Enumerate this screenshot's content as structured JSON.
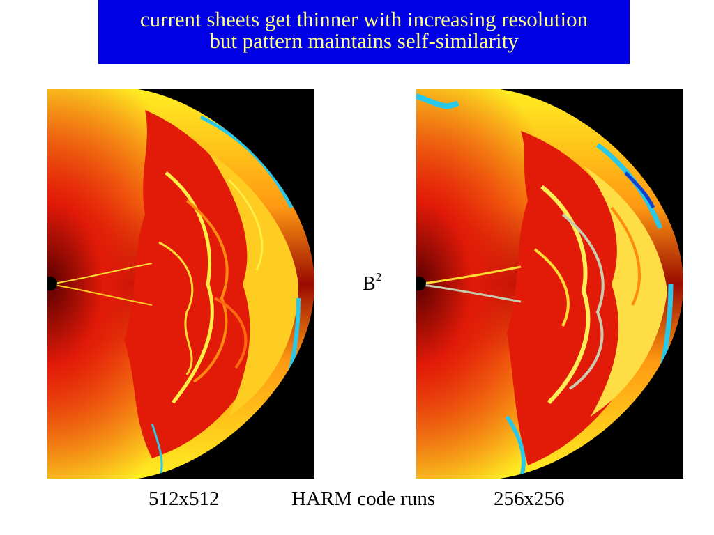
{
  "header": {
    "line1": "current sheets get thinner with increasing resolution",
    "line2": "but pattern maintains self-similarity",
    "background": "#0000e6",
    "text_color": "#ffff88"
  },
  "quantity": {
    "base": "B",
    "superscript": "2"
  },
  "captions": {
    "left": "512x512",
    "middle": "HARM code runs",
    "right": "256x256"
  },
  "colors": {
    "yellow": "#ffee22",
    "orange": "#ff8a10",
    "red": "#e21a08",
    "dark_red": "#7a0000",
    "cyan": "#2ac8e8",
    "black": "#000000"
  }
}
